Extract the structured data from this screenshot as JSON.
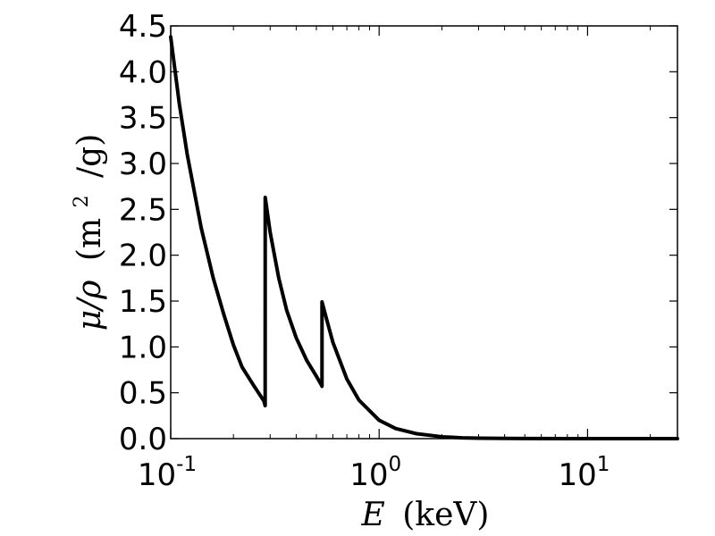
{
  "chart_data": {
    "type": "line",
    "title": "",
    "xlabel_math": "E",
    "xlabel_text": "(keV)",
    "ylabel_math": "μ/ρ",
    "ylabel_open": "(m",
    "ylabel_exp": "2",
    "ylabel_close": "/g)",
    "x_scale": "log",
    "xlim": [
      0.1,
      27
    ],
    "ylim": [
      0,
      4.5
    ],
    "grid": false,
    "legend": "none",
    "y_ticks": [
      "0.0",
      "0.5",
      "1.0",
      "1.5",
      "2.0",
      "2.5",
      "3.0",
      "3.5",
      "4.0",
      "4.5"
    ],
    "x_ticks": [
      {
        "base": "10",
        "exp": "-1"
      },
      {
        "base": "10",
        "exp": "0"
      },
      {
        "base": "10",
        "exp": "1"
      }
    ],
    "series": [
      {
        "color": "#000000",
        "x": [
          0.1,
          0.11,
          0.12,
          0.14,
          0.16,
          0.18,
          0.2,
          0.22,
          0.25,
          0.28,
          0.2839,
          0.2841,
          0.3,
          0.33,
          0.36,
          0.4,
          0.45,
          0.5,
          0.53,
          0.5319,
          0.5321,
          0.56,
          0.6,
          0.7,
          0.8,
          1.0,
          1.2,
          1.5,
          2.0,
          2.5,
          3.0,
          4.0,
          5.0,
          10.0,
          27.0
        ],
        "y": [
          4.38,
          3.65,
          3.1,
          2.3,
          1.75,
          1.35,
          1.02,
          0.78,
          0.58,
          0.41,
          0.36,
          2.63,
          2.25,
          1.75,
          1.4,
          1.1,
          0.85,
          0.68,
          0.58,
          0.57,
          1.49,
          1.3,
          1.05,
          0.65,
          0.42,
          0.2,
          0.11,
          0.055,
          0.02,
          0.009,
          0.005,
          0.002,
          0.001,
          0.0001,
          0.0
        ]
      }
    ]
  }
}
